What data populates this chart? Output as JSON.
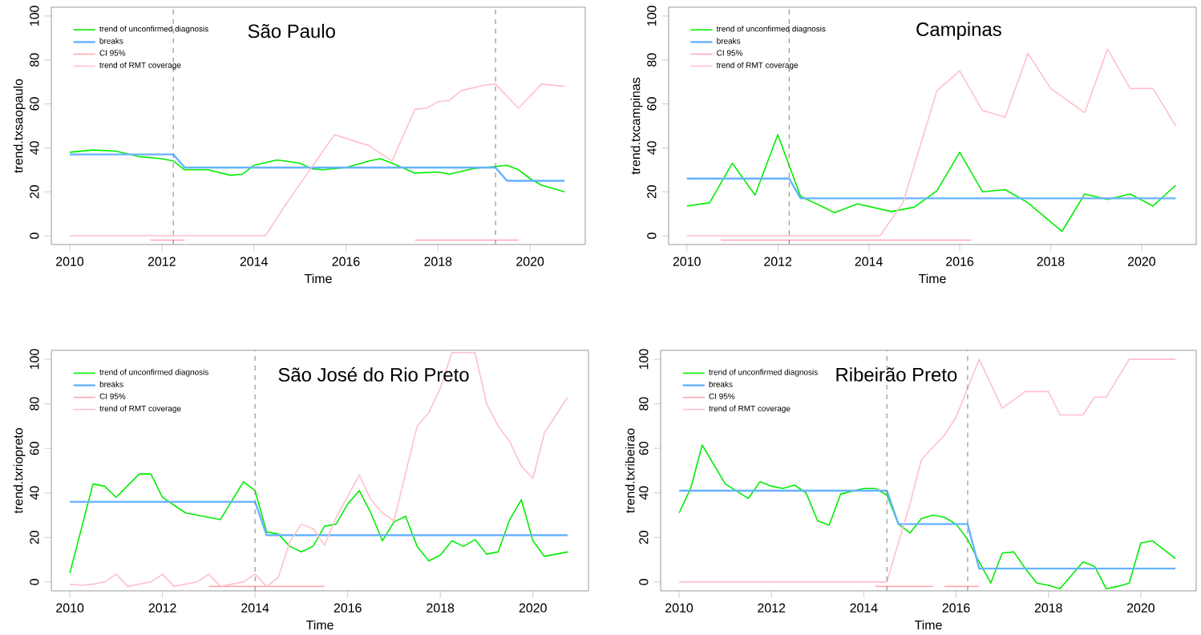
{
  "chart_data": [
    {
      "type": "line",
      "title": "São Paulo",
      "xlabel": "Time",
      "ylabel": "trend.txsaopaulo",
      "xlim": [
        2009.6,
        2021.2
      ],
      "ylim": [
        -4,
        104
      ],
      "xticks": [
        2010,
        2012,
        2014,
        2016,
        2018,
        2020
      ],
      "yticks": [
        0,
        20,
        40,
        60,
        80,
        100
      ],
      "legend": "top left",
      "series": [
        {
          "name": "trend of unconfirmed diagnosis",
          "color": "#00ee00",
          "x": [
            2010,
            2010.5,
            2011,
            2011.5,
            2012,
            2012.25,
            2012.5,
            2013,
            2013.5,
            2013.75,
            2014,
            2014.5,
            2015,
            2015.25,
            2015.5,
            2016,
            2016.5,
            2016.75,
            2017,
            2017.5,
            2018,
            2018.25,
            2018.75,
            2019,
            2019.5,
            2019.75,
            2020,
            2020.25,
            2020.75
          ],
          "values": [
            38,
            39,
            38.5,
            36,
            35,
            34,
            30,
            30,
            27.5,
            28,
            32,
            34.5,
            33,
            30.5,
            30,
            31,
            34,
            35,
            33,
            28.5,
            29,
            28,
            30.5,
            31,
            32,
            30,
            26,
            23,
            20
          ]
        },
        {
          "name": "breaks",
          "color": "#66b2ff",
          "x": [
            2010,
            2012.25,
            2012.5,
            2019.25,
            2019.5,
            2020.75
          ],
          "values": [
            37,
            37,
            31,
            31,
            25,
            25
          ]
        },
        {
          "name": "CI 95%",
          "color": "#ffa8b4",
          "x": [
            2011.75,
            2012.5,
            2013,
            2017.5,
            2019.75
          ],
          "values": [
            -2,
            -2,
            null,
            -2,
            -2
          ]
        },
        {
          "name": "trend of RMT coverage",
          "color": "#ffc0cb",
          "x": [
            2010,
            2014.25,
            2014.75,
            2015.75,
            2016.5,
            2017,
            2017.5,
            2017.75,
            2018,
            2018.25,
            2018.5,
            2019,
            2019.25,
            2019.75,
            2020.25,
            2020.75
          ],
          "values": [
            0,
            0,
            16,
            46,
            41,
            34,
            57.5,
            58,
            61,
            61.5,
            66,
            68.5,
            69,
            58,
            69,
            68
          ]
        }
      ],
      "ref_lines": [
        {
          "axis": "x",
          "value": 2012.25,
          "color": "#808080",
          "line_style": "dashed"
        },
        {
          "axis": "x",
          "value": 2019.25,
          "color": "#808080",
          "line_style": "dashed"
        }
      ]
    },
    {
      "type": "line",
      "title": "Campinas",
      "xlabel": "Time",
      "ylabel": "trend.txcampinas",
      "xlim": [
        2009.6,
        2021.2
      ],
      "ylim": [
        -4,
        104
      ],
      "xticks": [
        2010,
        2012,
        2014,
        2016,
        2018,
        2020
      ],
      "yticks": [
        0,
        20,
        40,
        60,
        80,
        100
      ],
      "legend": "top left",
      "series": [
        {
          "name": "trend of unconfirmed diagnosis",
          "color": "#00ee00",
          "x": [
            2010,
            2010.5,
            2011,
            2011.5,
            2012,
            2012.5,
            2013.25,
            2013.75,
            2014.5,
            2015,
            2015.5,
            2016,
            2016.5,
            2017,
            2017.5,
            2018.25,
            2018.75,
            2019.25,
            2019.75,
            2020.25,
            2020.75
          ],
          "values": [
            13.5,
            15,
            33,
            18.5,
            46,
            18,
            10.5,
            14.5,
            11,
            13,
            20.5,
            38,
            20,
            21,
            15,
            2,
            19,
            16.5,
            19,
            13.5,
            23
          ]
        },
        {
          "name": "breaks",
          "color": "#66b2ff",
          "x": [
            2010,
            2012.25,
            2012.5,
            2020.75
          ],
          "values": [
            26,
            26,
            17,
            17
          ]
        },
        {
          "name": "CI 95%",
          "color": "#ffa8b4",
          "x": [
            2010.75,
            2016.25
          ],
          "values": [
            -2,
            -2
          ]
        },
        {
          "name": "trend of RMT coverage",
          "color": "#ffc0cb",
          "x": [
            2010,
            2014.25,
            2014.75,
            2015.5,
            2016,
            2016.5,
            2017,
            2017.5,
            2018,
            2018.75,
            2019.25,
            2019.75,
            2020.25,
            2020.75
          ],
          "values": [
            0,
            0,
            15,
            66,
            75,
            57,
            54,
            83,
            67,
            56,
            85,
            67,
            67,
            50
          ]
        }
      ],
      "ref_lines": [
        {
          "axis": "x",
          "value": 2012.25,
          "color": "#808080",
          "line_style": "dashed"
        }
      ]
    },
    {
      "type": "line",
      "title": "São José do Rio Preto",
      "xlabel": "Time",
      "ylabel": "trend.txriopreto",
      "xlim": [
        2009.6,
        2021.2
      ],
      "ylim": [
        -4,
        104
      ],
      "xticks": [
        2010,
        2012,
        2014,
        2016,
        2018,
        2020
      ],
      "yticks": [
        0,
        20,
        40,
        60,
        80,
        100
      ],
      "legend": "top left",
      "series": [
        {
          "name": "trend of unconfirmed diagnosis",
          "color": "#00ee00",
          "x": [
            2010,
            2010.5,
            2010.75,
            2011,
            2011.5,
            2011.75,
            2012,
            2012.5,
            2012.75,
            2013.25,
            2013.75,
            2014,
            2014.25,
            2014.5,
            2014.75,
            2015,
            2015.25,
            2015.5,
            2015.75,
            2016,
            2016.25,
            2016.5,
            2016.75,
            2017,
            2017.25,
            2017.5,
            2017.75,
            2018,
            2018.25,
            2018.5,
            2018.75,
            2019,
            2019.25,
            2019.5,
            2019.75,
            2020,
            2020.25,
            2020.75
          ],
          "values": [
            4,
            44,
            43,
            38,
            48.5,
            48.5,
            38,
            31,
            30,
            28,
            45,
            41,
            22.5,
            21.5,
            16,
            13.5,
            16,
            25,
            26,
            35,
            41,
            31,
            18.5,
            27,
            29.5,
            16,
            9.5,
            12,
            18.5,
            16,
            19,
            12.5,
            13.5,
            28,
            37,
            18.5,
            11.5,
            13.5
          ]
        },
        {
          "name": "breaks",
          "color": "#66b2ff",
          "x": [
            2010,
            2014,
            2014.25,
            2020.75
          ],
          "values": [
            36,
            36,
            21,
            21
          ]
        },
        {
          "name": "CI 95%",
          "color": "#ffa8b4",
          "x": [
            2013,
            2015.5
          ],
          "values": [
            -2,
            -2
          ]
        },
        {
          "name": "trend of RMT coverage",
          "color": "#ffc0cb",
          "x": [
            2010,
            2010.25,
            2010.5,
            2010.75,
            2011,
            2011.25,
            2011.5,
            2011.75,
            2012,
            2012.25,
            2012.75,
            2013,
            2013.25,
            2013.75,
            2014,
            2014.25,
            2014.5,
            2014.75,
            2015,
            2015.25,
            2015.5,
            2015.75,
            2016.25,
            2016.5,
            2016.75,
            2017,
            2017.5,
            2017.75,
            2018,
            2018.25,
            2018.75,
            2019,
            2019.25,
            2019.5,
            2019.75,
            2020,
            2020.25,
            2020.75
          ],
          "values": [
            -1,
            -1.5,
            -1,
            0,
            3.5,
            -2,
            -1,
            0,
            3.5,
            -2,
            0,
            3.5,
            -2,
            0,
            3.5,
            -2,
            2,
            18,
            26,
            24,
            16.5,
            29,
            48,
            37,
            31,
            27.5,
            70,
            76,
            87,
            103,
            103,
            80,
            70,
            63,
            52,
            46.5,
            67,
            83
          ]
        }
      ],
      "ref_lines": [
        {
          "axis": "x",
          "value": 2014,
          "color": "#808080",
          "line_style": "dashed"
        }
      ]
    },
    {
      "type": "line",
      "title": "Ribeirão Preto",
      "xlabel": "Time",
      "ylabel": "trend.txribeirao",
      "xlim": [
        2009.6,
        2021.2
      ],
      "ylim": [
        -4,
        104
      ],
      "xticks": [
        2010,
        2012,
        2014,
        2016,
        2018,
        2020
      ],
      "yticks": [
        0,
        20,
        40,
        60,
        80,
        100
      ],
      "legend": "top left",
      "series": [
        {
          "name": "trend of unconfirmed diagnosis",
          "color": "#00ee00",
          "x": [
            2010,
            2010.25,
            2010.5,
            2011,
            2011.5,
            2011.75,
            2012,
            2012.25,
            2012.5,
            2012.75,
            2013,
            2013.25,
            2013.5,
            2014,
            2014.25,
            2014.5,
            2014.75,
            2015,
            2015.25,
            2015.5,
            2015.75,
            2016,
            2016.25,
            2016.5,
            2016.75,
            2017,
            2017.25,
            2017.5,
            2017.75,
            2018,
            2018.25,
            2018.5,
            2018.75,
            2019,
            2019.25,
            2019.5,
            2019.75,
            2020,
            2020.25,
            2020.75
          ],
          "values": [
            31,
            42,
            61.5,
            44,
            37.5,
            45,
            43,
            42,
            43.5,
            40,
            27.5,
            25.5,
            39.5,
            42,
            42,
            39,
            26,
            22,
            28.5,
            30,
            29,
            26,
            19,
            9,
            -0.5,
            13,
            13.5,
            6,
            -0.5,
            -1.5,
            -3,
            3,
            9,
            7,
            -3,
            -2,
            -0.5,
            17.5,
            18.5,
            10.5
          ]
        },
        {
          "name": "breaks",
          "color": "#66b2ff",
          "x": [
            2010,
            2014.5,
            2014.75,
            2016.25,
            2016.5,
            2020.75
          ],
          "values": [
            41,
            41,
            26,
            26,
            6,
            6
          ]
        },
        {
          "name": "CI 95%",
          "color": "#ffa8b4",
          "x": [
            2014.25,
            2015.5,
            2015.6,
            2015.75,
            2016.5
          ],
          "values": [
            -2,
            -2,
            null,
            -2,
            -2
          ]
        },
        {
          "name": "trend of RMT coverage",
          "color": "#ffc0cb",
          "x": [
            2010,
            2014.5,
            2015,
            2015.25,
            2015.75,
            2016,
            2016.25,
            2016.5,
            2017,
            2017.5,
            2018,
            2018.25,
            2018.75,
            2019,
            2019.25,
            2019.75,
            2020.75
          ],
          "values": [
            0,
            0,
            35,
            55,
            66,
            74,
            87,
            100,
            78,
            85.5,
            85.5,
            75,
            75,
            83,
            83,
            100,
            100
          ]
        }
      ],
      "ref_lines": [
        {
          "axis": "x",
          "value": 2014.5,
          "color": "#808080",
          "line_style": "dashed"
        },
        {
          "axis": "x",
          "value": 2016.25,
          "color": "#808080",
          "line_style": "dashed"
        }
      ]
    }
  ]
}
